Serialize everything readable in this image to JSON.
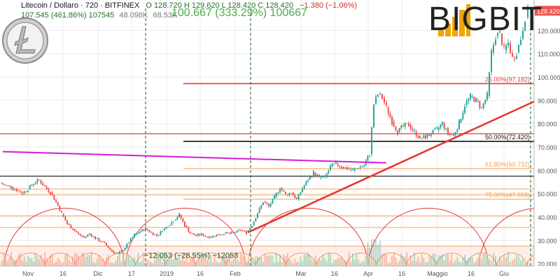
{
  "header": {
    "symbol_line": "Litecoin / Dollaro · 720 · BITFINEX",
    "ohlc_line": "O 128.720 H 129.620 L 128.420 C 128.420",
    "change": "−1.380 (−1.06%)",
    "volume_main": "48.098K",
    "volume_ma": "68.53K",
    "sub_values": "107.545 (461.86%) 107545"
  },
  "measure_label_top": "100.667 (333.29%) 100667",
  "measure_label_bottom": "−12.053 (−28.55%) −12053",
  "logo_text": "BIGBIT",
  "last_price_label": "128.420",
  "colors": {
    "up": "#26a69a",
    "down": "#ef5350",
    "red_line": "#e53935",
    "magenta": "#d81bd8",
    "fib_orange": "#f4a259",
    "arc_red": "#e53935",
    "grid": "#eeeeee"
  },
  "chart_data": {
    "type": "candlestick",
    "title": "Litecoin / Dollaro",
    "xlabel": "",
    "ylabel": "",
    "x_ticks": [
      "Nov",
      "16",
      "Dic",
      "17",
      "2019",
      "16",
      "Feb",
      "Mar",
      "16",
      "Apr",
      "16",
      "Maggio",
      "16",
      "Giu"
    ],
    "y_ticks": [
      20,
      30,
      40,
      50,
      60,
      70,
      80,
      90,
      100,
      110,
      120
    ],
    "ylim": [
      16,
      130
    ],
    "price_path": [
      [
        0,
        54.5
      ],
      [
        8,
        53.5
      ],
      [
        16,
        52.8
      ],
      [
        24,
        51.5
      ],
      [
        32,
        50.2
      ],
      [
        40,
        52.0
      ],
      [
        48,
        54.5
      ],
      [
        56,
        55.8
      ],
      [
        64,
        53.0
      ],
      [
        72,
        50.5
      ],
      [
        80,
        46.5
      ],
      [
        88,
        41.5
      ],
      [
        96,
        37.0
      ],
      [
        104,
        34.8
      ],
      [
        112,
        32.6
      ],
      [
        120,
        31.2
      ],
      [
        128,
        32.8
      ],
      [
        136,
        30.8
      ],
      [
        144,
        29.6
      ],
      [
        152,
        27.8
      ],
      [
        160,
        25.3
      ],
      [
        168,
        24.2
      ],
      [
        176,
        25.8
      ],
      [
        184,
        29.2
      ],
      [
        192,
        32.3
      ],
      [
        200,
        33.8
      ],
      [
        208,
        35.0
      ],
      [
        216,
        33.3
      ],
      [
        224,
        32.0
      ],
      [
        232,
        34.2
      ],
      [
        240,
        36.3
      ],
      [
        248,
        38.5
      ],
      [
        256,
        41.0
      ],
      [
        264,
        36.3
      ],
      [
        272,
        33.0
      ],
      [
        280,
        32.0
      ],
      [
        288,
        32.6
      ],
      [
        296,
        31.5
      ],
      [
        304,
        31.8
      ],
      [
        312,
        32.5
      ],
      [
        320,
        33.0
      ],
      [
        328,
        32.8
      ],
      [
        336,
        33.4
      ],
      [
        344,
        34.3
      ],
      [
        352,
        33.3
      ],
      [
        360,
        36.5
      ],
      [
        368,
        41.8
      ],
      [
        376,
        46.5
      ],
      [
        384,
        44.5
      ],
      [
        392,
        48.5
      ],
      [
        400,
        52.5
      ],
      [
        408,
        49.5
      ],
      [
        416,
        50.5
      ],
      [
        424,
        47.5
      ],
      [
        432,
        52.3
      ],
      [
        440,
        56.0
      ],
      [
        448,
        59.0
      ],
      [
        456,
        56.8
      ],
      [
        464,
        57.0
      ],
      [
        472,
        61.5
      ],
      [
        480,
        62.8
      ],
      [
        488,
        61.5
      ],
      [
        496,
        60.8
      ],
      [
        504,
        60.0
      ],
      [
        512,
        61.2
      ],
      [
        520,
        62.0
      ],
      [
        528,
        67.0
      ],
      [
        534,
        88.5
      ],
      [
        540,
        92.5
      ],
      [
        546,
        91.0
      ],
      [
        552,
        87.0
      ],
      [
        560,
        81.0
      ],
      [
        568,
        76.5
      ],
      [
        576,
        78.8
      ],
      [
        584,
        79.5
      ],
      [
        592,
        76.5
      ],
      [
        600,
        73.8
      ],
      [
        608,
        74.2
      ],
      [
        616,
        75.8
      ],
      [
        624,
        77.3
      ],
      [
        632,
        80.3
      ],
      [
        640,
        75.5
      ],
      [
        648,
        75.0
      ],
      [
        656,
        80.5
      ],
      [
        664,
        88.0
      ],
      [
        672,
        91.5
      ],
      [
        680,
        90.0
      ],
      [
        688,
        86.8
      ],
      [
        696,
        92.0
      ],
      [
        702,
        110.5
      ],
      [
        708,
        117.5
      ],
      [
        714,
        118.5
      ],
      [
        720,
        111.5
      ],
      [
        726,
        114.5
      ],
      [
        732,
        108.0
      ],
      [
        738,
        110.5
      ],
      [
        744,
        116.5
      ],
      [
        750,
        125.5
      ],
      [
        754,
        128.4
      ]
    ],
    "volume_period": 8,
    "measure_bars": [
      {
        "label": "100.667 (333.29%) 100667",
        "x_from": 208,
        "x_to": 358
      },
      {
        "label": "107.545 (461.86%) 107545",
        "x_from": 0,
        "x_to": 208
      }
    ],
    "fib_levels": [
      {
        "label": "25.00%(97.182)",
        "value": 97.182,
        "color": "#e53935",
        "width": 1.6
      },
      {
        "label": "50.00%(72.420)",
        "value": 72.42,
        "color": "#111111",
        "width": 1.6
      },
      {
        "label": "61.80%(60.732)",
        "value": 60.732,
        "color": "#f4a259",
        "width": 1
      },
      {
        "label": "75.00%(47.658)",
        "value": 47.658,
        "color": "#f4a259",
        "width": 1
      }
    ],
    "horizontal_lines": [
      {
        "value": 75.7,
        "color": "#e53935",
        "width": 1.2
      },
      {
        "value": 57.5,
        "color": "#111111",
        "width": 1.2
      },
      {
        "value": 52.0,
        "color": "#f4a259",
        "width": 1
      },
      {
        "value": 49.5,
        "color": "#f4a259",
        "width": 1
      },
      {
        "value": 40.5,
        "color": "#f4a259",
        "width": 1
      },
      {
        "value": 35.5,
        "color": "#f4a259",
        "width": 1
      },
      {
        "value": 27.5,
        "color": "#f4a259",
        "width": 1
      }
    ],
    "trendlines": [
      {
        "name": "support",
        "from": [
          355,
          33.5
        ],
        "to": [
          763,
          89.5
        ],
        "color": "#e53935",
        "width": 2.6
      },
      {
        "name": "magenta",
        "from": [
          4,
          68.0
        ],
        "to": [
          552,
          63.2
        ],
        "color": "#d81bd8",
        "width": 2
      }
    ],
    "vertical_dashed_x": [
      208,
      358,
      758
    ],
    "cycle_arcs": {
      "large_centers": [
        92,
        265,
        440,
        612,
        770
      ],
      "large_radius": 86,
      "small_period": 43,
      "small_radius": 22
    }
  }
}
